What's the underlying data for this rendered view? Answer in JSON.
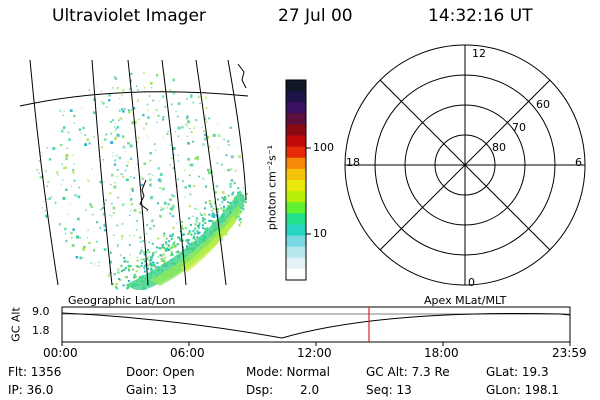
{
  "header": {
    "instrument": "Ultraviolet Imager",
    "date": "27 Jul 00",
    "time": "14:32:16 UT"
  },
  "colorbar": {
    "unit_label": "photon cm⁻²s⁻¹",
    "ticks": [
      "100",
      "10"
    ],
    "colors": [
      "#101828",
      "#1e1448",
      "#3a1060",
      "#5a0f3c",
      "#8a0a14",
      "#c20a0a",
      "#e62a0a",
      "#f58a0a",
      "#f5c20a",
      "#e8e80a",
      "#b8f00a",
      "#62f032",
      "#22e08a",
      "#2ad4c2",
      "#7ad8e2",
      "#b8e6ee",
      "#e2f2f6",
      "#ffffff"
    ]
  },
  "polar_plot": {
    "mlt_labels": {
      "top": "12",
      "bottom": "0",
      "left": "18",
      "right": "6"
    },
    "lat_labels": [
      "60",
      "70",
      "80"
    ]
  },
  "timeline": {
    "left_label": "Geographic Lat/Lon",
    "right_label": "Apex MLat/MLT",
    "axis_label": "GC Alt",
    "y_ticks": [
      "9.0",
      "1.8"
    ],
    "x_ticks": [
      "00:00",
      "06:00",
      "12:00",
      "18:00",
      "23:59"
    ],
    "marker_color": "#e02020"
  },
  "status": {
    "flt": "Flt: 1356",
    "ip": "IP: 36.0",
    "door": "Door: Open",
    "gain": "Gain: 13",
    "mode": "Mode: Normal",
    "dsp_label": "Dsp:",
    "dsp_value": "2.0",
    "gc_alt": "GC Alt: 7.3 Re",
    "seq": "Seq: 13",
    "glat": "GLat:  19.3",
    "glon": "GLon: 198.1"
  }
}
